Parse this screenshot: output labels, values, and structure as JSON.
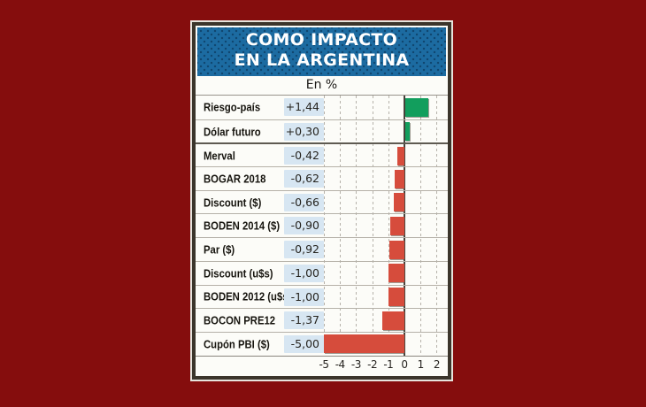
{
  "header": {
    "title_line1": "COMO IMPACTO",
    "title_line2": "EN LA ARGENTINA",
    "subtitle": "En %"
  },
  "colors": {
    "page_background": "#850d0d",
    "header_blue": "#1c6ba1",
    "value_badge": "#d7e6f2"
  },
  "chart_data": {
    "type": "bar",
    "orientation": "horizontal",
    "title": "COMO IMPACTO EN LA ARGENTINA",
    "subtitle": "En %",
    "unit": "percent change",
    "categories": [
      "Riesgo-país",
      "Dólar futuro",
      "Merval",
      "BOGAR 2018",
      "Discount ($)",
      "BODEN 2014 ($)",
      "Par ($)",
      "Discount (u$s)",
      "BODEN 2012 (u$s)",
      "BOCON PRE12",
      "Cupón PBI ($)"
    ],
    "values": [
      1.44,
      0.3,
      -0.42,
      -0.62,
      -0.66,
      -0.9,
      -0.92,
      -1.0,
      -1.0,
      -1.37,
      -5.0
    ],
    "value_labels": [
      "+1,44",
      "+0,30",
      "-0,42",
      "-0,62",
      "-0,66",
      "-0,90",
      "-0,92",
      "-1,00",
      "-1,00",
      "-1,37",
      "-5,00"
    ],
    "xlim": [
      -5,
      2
    ],
    "x_ticks": [
      -5,
      -4,
      -3,
      -2,
      -1,
      0,
      1,
      2
    ],
    "x_tick_labels": [
      "-5",
      "-4",
      "-3",
      "-2",
      "-1",
      "0",
      "1",
      "2"
    ],
    "grid": "dashed vertical gridlines at each integer, solid dark zero line",
    "legend": "none",
    "positive_color": "#129e5d",
    "negative_color": "#d64c3c",
    "group_break_index": 2
  }
}
